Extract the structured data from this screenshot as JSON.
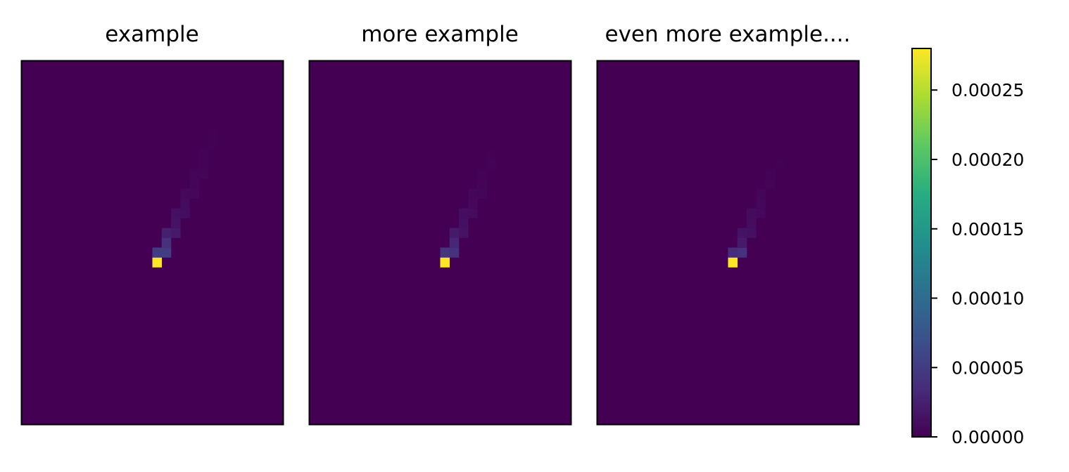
{
  "chart_data": {
    "type": "heatmap",
    "colormap": "viridis",
    "axis_ticks_visible": false,
    "grid": false,
    "panels": [
      {
        "title": "example",
        "grid_size": [
          28,
          37
        ],
        "background_value": 0.0,
        "cells": [
          {
            "col": 14,
            "row": 20,
            "value": 0.00028
          },
          {
            "col": 14,
            "row": 19,
            "value": 5e-05
          },
          {
            "col": 15,
            "row": 19,
            "value": 5e-05
          },
          {
            "col": 15,
            "row": 18,
            "value": 4e-05
          },
          {
            "col": 15,
            "row": 17,
            "value": 2.5e-05
          },
          {
            "col": 16,
            "row": 17,
            "value": 2e-05
          },
          {
            "col": 16,
            "row": 16,
            "value": 1.5e-05
          },
          {
            "col": 16,
            "row": 15,
            "value": 1.2e-05
          },
          {
            "col": 17,
            "row": 15,
            "value": 1e-05
          },
          {
            "col": 17,
            "row": 14,
            "value": 8e-06
          },
          {
            "col": 17,
            "row": 13,
            "value": 6e-06
          },
          {
            "col": 18,
            "row": 13,
            "value": 5e-06
          },
          {
            "col": 18,
            "row": 12,
            "value": 4e-06
          },
          {
            "col": 18,
            "row": 11,
            "value": 3e-06
          },
          {
            "col": 19,
            "row": 11,
            "value": 3e-06
          },
          {
            "col": 19,
            "row": 10,
            "value": 2e-06
          },
          {
            "col": 19,
            "row": 9,
            "value": 2e-06
          },
          {
            "col": 20,
            "row": 8,
            "value": 1e-06
          },
          {
            "col": 20,
            "row": 7,
            "value": 1e-06
          }
        ]
      },
      {
        "title": "more example",
        "grid_size": [
          28,
          37
        ],
        "background_value": 0.0,
        "cells": [
          {
            "col": 14,
            "row": 20,
            "value": 0.00028
          },
          {
            "col": 14,
            "row": 19,
            "value": 4.5e-05
          },
          {
            "col": 15,
            "row": 19,
            "value": 4e-05
          },
          {
            "col": 15,
            "row": 18,
            "value": 3e-05
          },
          {
            "col": 15,
            "row": 17,
            "value": 2e-05
          },
          {
            "col": 16,
            "row": 17,
            "value": 1.5e-05
          },
          {
            "col": 16,
            "row": 16,
            "value": 1.2e-05
          },
          {
            "col": 16,
            "row": 15,
            "value": 1e-05
          },
          {
            "col": 17,
            "row": 15,
            "value": 8e-06
          },
          {
            "col": 17,
            "row": 14,
            "value": 6e-06
          },
          {
            "col": 17,
            "row": 13,
            "value": 5e-06
          },
          {
            "col": 18,
            "row": 13,
            "value": 4e-06
          },
          {
            "col": 18,
            "row": 12,
            "value": 3e-06
          },
          {
            "col": 18,
            "row": 11,
            "value": 2e-06
          },
          {
            "col": 19,
            "row": 10,
            "value": 2e-06
          },
          {
            "col": 19,
            "row": 9,
            "value": 1e-06
          }
        ]
      },
      {
        "title": "even more example....",
        "grid_size": [
          28,
          37
        ],
        "background_value": 0.0,
        "cells": [
          {
            "col": 14,
            "row": 20,
            "value": 0.00028
          },
          {
            "col": 14,
            "row": 19,
            "value": 3.5e-05
          },
          {
            "col": 15,
            "row": 19,
            "value": 4e-05
          },
          {
            "col": 15,
            "row": 18,
            "value": 2e-05
          },
          {
            "col": 15,
            "row": 17,
            "value": 1.5e-05
          },
          {
            "col": 16,
            "row": 17,
            "value": 1.2e-05
          },
          {
            "col": 16,
            "row": 16,
            "value": 1e-05
          },
          {
            "col": 16,
            "row": 15,
            "value": 8e-06
          },
          {
            "col": 17,
            "row": 15,
            "value": 6e-06
          },
          {
            "col": 17,
            "row": 14,
            "value": 5e-06
          },
          {
            "col": 17,
            "row": 13,
            "value": 4e-06
          },
          {
            "col": 18,
            "row": 12,
            "value": 3e-06
          },
          {
            "col": 18,
            "row": 11,
            "value": 2e-06
          },
          {
            "col": 19,
            "row": 10,
            "value": 1e-06
          }
        ]
      }
    ],
    "colorbar": {
      "vmin": 0.0,
      "vmax": 0.00028,
      "ticks": [
        0.0,
        5e-05,
        0.0001,
        0.00015,
        0.0002,
        0.00025
      ],
      "tick_labels": [
        "0.00000",
        "0.00005",
        "0.00010",
        "0.00015",
        "0.00020",
        "0.00025"
      ]
    }
  }
}
